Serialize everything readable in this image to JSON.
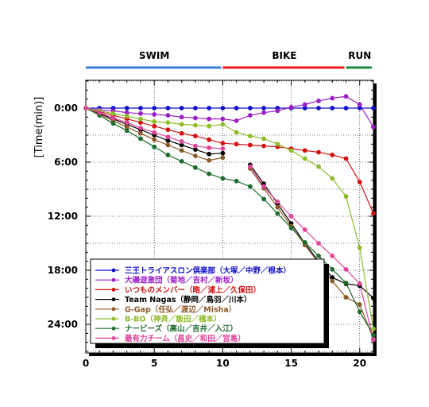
{
  "chart_data": {
    "type": "line",
    "ylabel": "[Time(min)]",
    "xlim": [
      0,
      21
    ],
    "ylim": [
      0,
      27
    ],
    "x_ticks": [
      "0",
      "5",
      "10",
      "15",
      "20"
    ],
    "y_ticks": [
      "0:00",
      "6:00",
      "12:00",
      "18:00",
      "24:00"
    ],
    "segments": [
      {
        "label": "SWIM",
        "color": "#3a7fd5",
        "x_start": 0,
        "x_end": 10
      },
      {
        "label": "BIKE",
        "color": "#e8171e",
        "x_start": 10,
        "x_end": 19
      },
      {
        "label": "RUN",
        "color": "#1d8a3e",
        "x_start": 19,
        "x_end": 21
      }
    ],
    "x": [
      0,
      1,
      2,
      3,
      4,
      5,
      6,
      7,
      8,
      9,
      10,
      11,
      12,
      13,
      14,
      15,
      16,
      17,
      18,
      19,
      20,
      21
    ],
    "series": [
      {
        "name": "三王トライアスロン倶楽部（大塚／中野／根本）",
        "color": "#1010c8",
        "values": [
          0,
          0,
          0,
          0,
          0,
          0,
          0,
          0,
          0,
          0,
          0,
          0,
          0,
          0,
          0,
          0,
          0,
          0,
          0,
          0,
          0,
          0
        ]
      },
      {
        "name": "大磯遊激団（菊地／吉村／新坂）",
        "color": "#9a1fc8",
        "values": [
          0,
          0.2,
          0.3,
          0.5,
          0.6,
          0.7,
          0.8,
          1.0,
          1.1,
          1.2,
          1.2,
          1.4,
          0.8,
          0.5,
          0.3,
          -0.1,
          -0.4,
          -0.8,
          -1.1,
          -1.3,
          -0.4,
          2.1
        ]
      },
      {
        "name": "いつものメンバー（晧／浦上／久保田）",
        "color": "#d41010",
        "values": [
          0,
          0.4,
          0.8,
          1.2,
          1.6,
          2.0,
          2.4,
          2.8,
          3.1,
          3.5,
          3.9,
          4.0,
          4.1,
          4.2,
          4.3,
          4.5,
          4.7,
          4.9,
          5.2,
          5.6,
          8.2,
          11.7
        ]
      },
      {
        "name": "Team Nagas（静岡／鳥羽／川本）",
        "color": "#000000",
        "values": [
          0,
          0.6,
          1.2,
          1.8,
          2.4,
          3.0,
          3.6,
          4.1,
          4.6,
          5.1,
          5.0,
          null,
          6.3,
          8.4,
          10.6,
          12.8,
          15.0,
          17.0,
          18.8,
          19.5,
          19.7,
          21.1
        ]
      },
      {
        "name": "G-Gap（任弘／渡辺／Misha）",
        "color": "#8b5a2b",
        "values": [
          0,
          0.7,
          1.4,
          2.1,
          2.8,
          3.5,
          4.1,
          4.7,
          5.3,
          5.8,
          5.5,
          null,
          6.7,
          8.9,
          11.0,
          13.1,
          15.2,
          17.2,
          19.2,
          21.0,
          21.8,
          25.6
        ]
      },
      {
        "name": "B-BO（神斉／飯田／橋本）",
        "color": "#8fbc2a",
        "values": [
          0,
          0.3,
          0.6,
          0.9,
          1.2,
          1.5,
          1.6,
          1.8,
          1.9,
          2.0,
          1.8,
          2.7,
          3.1,
          3.4,
          4.0,
          4.7,
          5.6,
          6.5,
          7.8,
          9.8,
          15.5,
          24.5
        ]
      },
      {
        "name": "ナービーズ（高山／吉井／入江）",
        "color": "#1e6b2e",
        "values": [
          0,
          0.8,
          1.7,
          2.5,
          3.4,
          4.3,
          5.2,
          5.9,
          6.6,
          7.3,
          7.8,
          8.1,
          8.7,
          10.1,
          11.7,
          13.3,
          14.9,
          16.4,
          17.9,
          19.4,
          22.6,
          25.2
        ]
      },
      {
        "name": "最有力チーム（昌史／和田／宮島）",
        "color": "#e0449a",
        "values": [
          0,
          0.5,
          1.1,
          1.6,
          2.2,
          2.7,
          3.2,
          3.7,
          4.2,
          4.4,
          4.5,
          null,
          6.5,
          8.7,
          10.4,
          12.0,
          13.5,
          15.0,
          16.4,
          17.9,
          19.5,
          25.7
        ]
      }
    ],
    "legend_position": "bottom-left",
    "grid": "dotted"
  }
}
